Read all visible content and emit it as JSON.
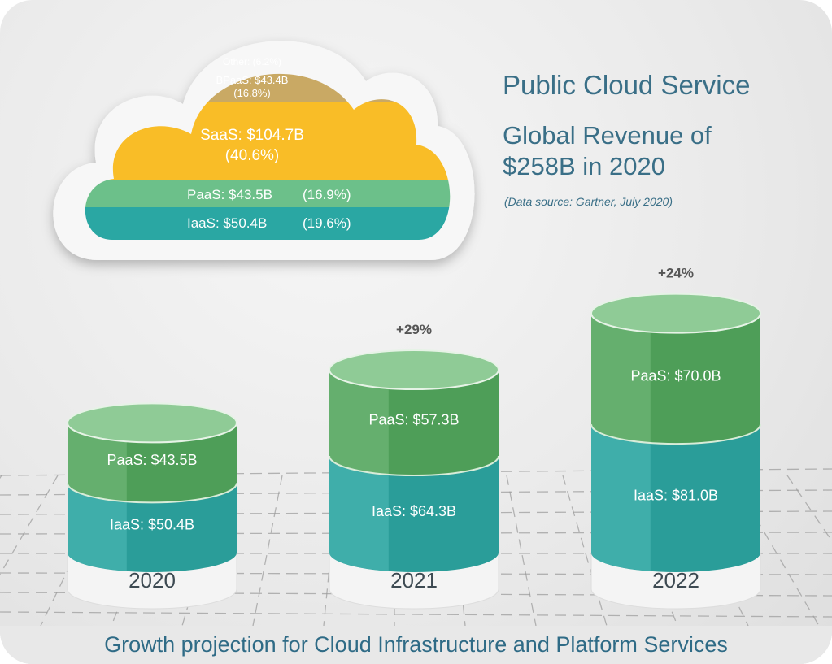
{
  "header": {
    "title": "Public Cloud Service",
    "subtitle": "Global Revenue of $258B in 2020",
    "source": "(Data source: Gartner, July 2020)"
  },
  "caption": "Growth projection for Cloud Infrastructure and Platform Services",
  "colors": {
    "iaas": "#2aa7a3",
    "paas": "#5fae6a",
    "saas": "#f9bd27",
    "bpaas": "#c9a964",
    "other": "#a9bfbb",
    "paas_light": "#6cc08a",
    "text": "#3a6f87"
  },
  "chart_data": [
    {
      "type": "pie",
      "title": "Public Cloud Service Global Revenue 2020",
      "segments": [
        {
          "name": "Other",
          "label": "Other: (6.2%)",
          "label2": "",
          "percent": 6.2
        },
        {
          "name": "BPaaS",
          "label": "BPaaS: $43.4B",
          "label2": "(16.8%)",
          "value": 43.4,
          "percent": 16.8
        },
        {
          "name": "SaaS",
          "label": "SaaS: $104.7B",
          "label2": "(40.6%)",
          "value": 104.7,
          "percent": 40.6
        },
        {
          "name": "PaaS",
          "label": "PaaS: $43.5B",
          "label2": "(16.9%)",
          "value": 43.5,
          "percent": 16.9
        },
        {
          "name": "IaaS",
          "label": "IaaS: $50.4B",
          "label2": "(19.6%)",
          "value": 50.4,
          "percent": 19.6
        }
      ]
    },
    {
      "type": "bar",
      "stacked": true,
      "title": "Growth projection for Cloud Infrastructure and Platform Services",
      "categories": [
        "2020",
        "2021",
        "2022"
      ],
      "series": [
        {
          "name": "IaaS",
          "values": [
            50.4,
            64.3,
            81.0
          ],
          "labels": [
            "IaaS: $50.4B",
            "IaaS: $64.3B",
            "IaaS: $81.0B"
          ]
        },
        {
          "name": "PaaS",
          "values": [
            43.5,
            57.3,
            70.0
          ],
          "labels": [
            "PaaS: $43.5B",
            "PaaS: $57.3B",
            "PaaS: $70.0B"
          ]
        }
      ],
      "growth_labels": [
        "",
        "+29%",
        "+24%"
      ]
    }
  ]
}
